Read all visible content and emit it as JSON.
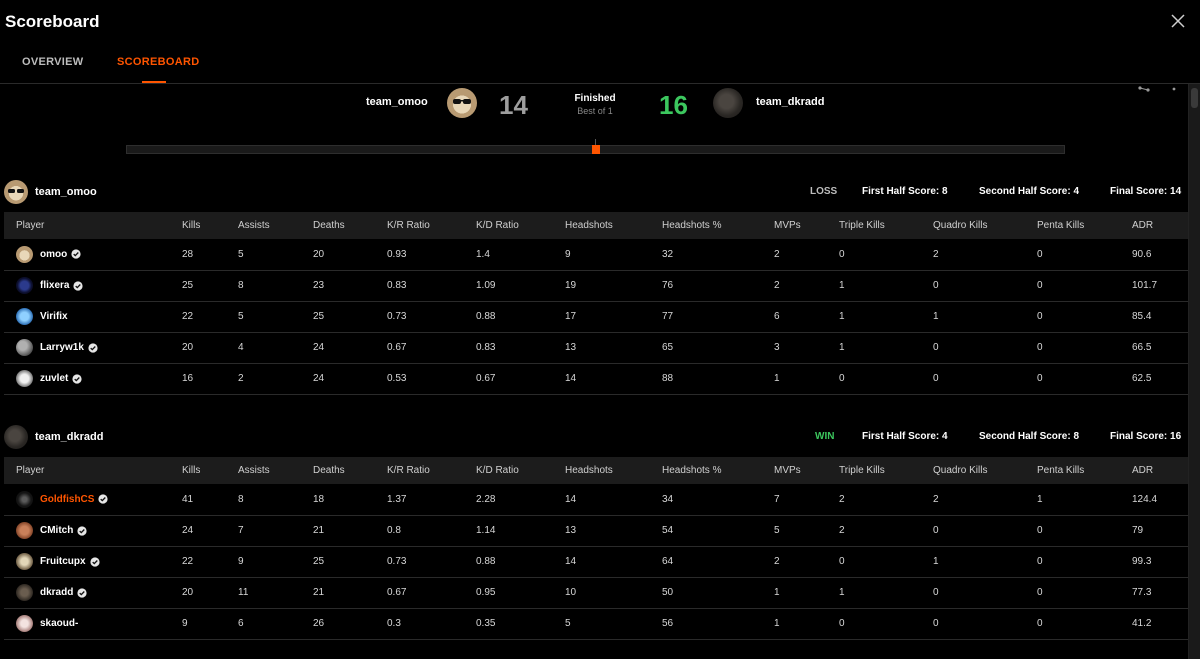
{
  "header": {
    "title": "Scoreboard",
    "tabs": [
      {
        "label": "OVERVIEW"
      },
      {
        "label": "SCOREBOARD"
      }
    ],
    "active_tab": "SCOREBOARD",
    "accent_color": "#ff5500"
  },
  "match": {
    "team1": {
      "name": "team_omoo",
      "score": "14"
    },
    "team2": {
      "name": "team_dkradd",
      "score": "16"
    },
    "status": "Finished",
    "format": "Best of 1",
    "winner_color": "#3cc75e",
    "progress": {
      "marker_position": 0.5
    }
  },
  "columns": [
    "Player",
    "Kills",
    "Assists",
    "Deaths",
    "K/R Ratio",
    "K/D Ratio",
    "Headshots",
    "Headshots %",
    "MVPs",
    "Triple Kills",
    "Quadro Kills",
    "Penta Kills",
    "ADR"
  ],
  "teams": [
    {
      "name": "team_omoo",
      "result": "LOSS",
      "result_color": "#bdbdbd",
      "first_half": "First Half Score: 8",
      "second_half": "Second Half Score: 4",
      "final": "Final Score: 14",
      "players": [
        {
          "name": "omoo",
          "verified": true,
          "highlight": false,
          "stats": [
            "28",
            "5",
            "20",
            "0.93",
            "1.4",
            "9",
            "32",
            "2",
            "0",
            "2",
            "0",
            "90.6"
          ]
        },
        {
          "name": "flixera",
          "verified": true,
          "highlight": false,
          "stats": [
            "25",
            "8",
            "23",
            "0.83",
            "1.09",
            "19",
            "76",
            "2",
            "1",
            "0",
            "0",
            "101.7"
          ]
        },
        {
          "name": "Virifix",
          "verified": false,
          "highlight": false,
          "stats": [
            "22",
            "5",
            "25",
            "0.73",
            "0.88",
            "17",
            "77",
            "6",
            "1",
            "1",
            "0",
            "85.4"
          ]
        },
        {
          "name": "Larryw1k",
          "verified": true,
          "highlight": false,
          "stats": [
            "20",
            "4",
            "24",
            "0.67",
            "0.83",
            "13",
            "65",
            "3",
            "1",
            "0",
            "0",
            "66.5"
          ]
        },
        {
          "name": "zuvlet",
          "verified": true,
          "highlight": false,
          "stats": [
            "16",
            "2",
            "24",
            "0.53",
            "0.67",
            "14",
            "88",
            "1",
            "0",
            "0",
            "0",
            "62.5"
          ]
        }
      ]
    },
    {
      "name": "team_dkradd",
      "result": "WIN",
      "result_color": "#3cc75e",
      "first_half": "First Half Score: 4",
      "second_half": "Second Half Score: 8",
      "final": "Final Score: 16",
      "players": [
        {
          "name": "GoldfishCS",
          "verified": true,
          "highlight": true,
          "stats": [
            "41",
            "8",
            "18",
            "1.37",
            "2.28",
            "14",
            "34",
            "7",
            "2",
            "2",
            "1",
            "124.4"
          ]
        },
        {
          "name": "CMitch",
          "verified": true,
          "highlight": false,
          "stats": [
            "24",
            "7",
            "21",
            "0.8",
            "1.14",
            "13",
            "54",
            "5",
            "2",
            "0",
            "0",
            "79"
          ]
        },
        {
          "name": "Fruitcupx",
          "verified": true,
          "highlight": false,
          "stats": [
            "22",
            "9",
            "25",
            "0.73",
            "0.88",
            "14",
            "64",
            "2",
            "0",
            "1",
            "0",
            "99.3"
          ]
        },
        {
          "name": "dkradd",
          "verified": true,
          "highlight": false,
          "stats": [
            "20",
            "11",
            "21",
            "0.67",
            "0.95",
            "10",
            "50",
            "1",
            "1",
            "0",
            "0",
            "77.3"
          ]
        },
        {
          "name": "skaoud-",
          "verified": false,
          "highlight": false,
          "stats": [
            "9",
            "6",
            "26",
            "0.3",
            "0.35",
            "5",
            "56",
            "1",
            "0",
            "0",
            "0",
            "41.2"
          ]
        }
      ]
    }
  ]
}
